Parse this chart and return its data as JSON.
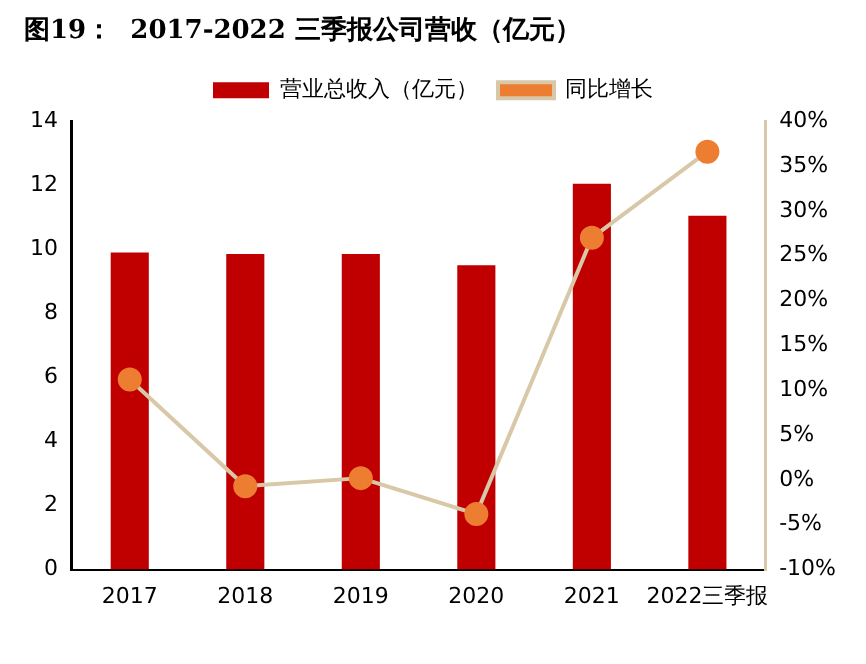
{
  "chart_data": {
    "type": "bar",
    "title": "图19：  2017-2022 三季报公司营收（亿元）",
    "categories": [
      "2017",
      "2018",
      "2019",
      "2020",
      "2021",
      "2022三季报"
    ],
    "series": [
      {
        "name": "营业总收入（亿元）",
        "color": "#c00000",
        "values": [
          9.9,
          9.85,
          9.85,
          9.5,
          12.05,
          11.05
        ]
      },
      {
        "name": "同比增长",
        "type": "line",
        "axis": "y2",
        "color": "#d8c8a8",
        "marker": "circle",
        "values": [
          11.2,
          -0.7,
          0.2,
          -3.8,
          27.0,
          36.6
        ]
      }
    ],
    "ylim": [
      0,
      14
    ],
    "yticks": [
      0,
      2,
      4,
      6,
      8,
      10,
      12,
      14
    ],
    "y2lim": [
      -10,
      40
    ],
    "y2ticks": [
      {
        "value": -10,
        "label": "-10%"
      },
      {
        "value": -5,
        "label": "-5%"
      },
      {
        "value": 0,
        "label": "0%"
      },
      {
        "value": 5,
        "label": "5%"
      },
      {
        "value": 10,
        "label": "10%"
      },
      {
        "value": 15,
        "label": "15%"
      },
      {
        "value": 20,
        "label": "20%"
      },
      {
        "value": 25,
        "label": "25%"
      },
      {
        "value": 30,
        "label": "30%"
      },
      {
        "value": 35,
        "label": "35%"
      },
      {
        "value": 40,
        "label": "40%"
      }
    ],
    "legend": "top",
    "grid": false
  }
}
